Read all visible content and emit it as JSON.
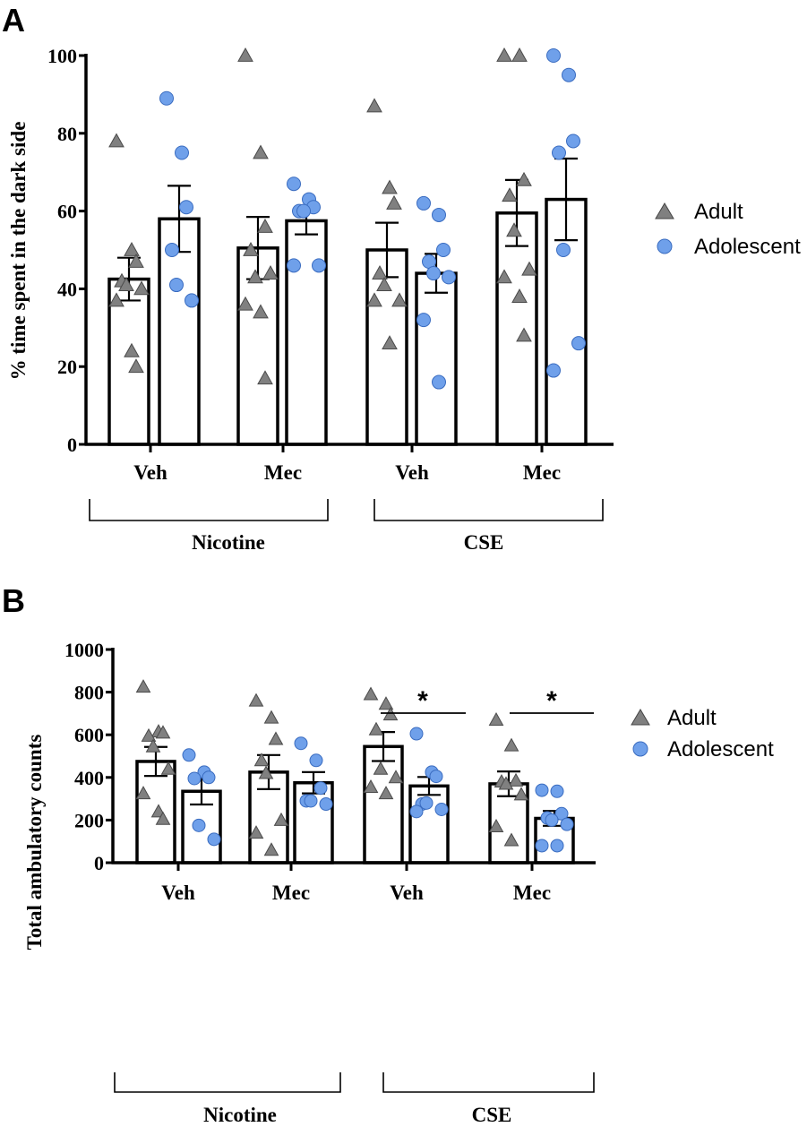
{
  "chart_data": [
    {
      "panel": "A",
      "type": "bar",
      "ylabel": "% time spent in the dark side",
      "ylim": [
        0,
        100
      ],
      "yticks": [
        "0",
        "20",
        "40",
        "60",
        "80",
        "100"
      ],
      "categories": [
        "Veh",
        "Mec",
        "Veh",
        "Mec"
      ],
      "groups": [
        "Nicotine",
        "CSE"
      ],
      "legend": [
        "Adult",
        "Adolescent"
      ],
      "series": [
        {
          "name": "Adult",
          "marker": "triangle",
          "color": "#808080",
          "values": [
            42.5,
            50.5,
            50,
            59.5
          ],
          "sem": [
            5.5,
            8,
            7,
            8.5
          ],
          "points": [
            [
              78,
              50,
              47,
              42,
              41,
              40,
              37,
              24,
              20
            ],
            [
              100,
              75,
              56,
              50,
              43,
              44,
              36,
              34,
              17
            ],
            [
              87,
              66,
              62,
              44,
              41,
              37,
              37,
              26
            ],
            [
              100,
              100,
              68,
              64,
              55,
              45,
              43,
              38,
              28
            ]
          ]
        },
        {
          "name": "Adolescent",
          "marker": "circle",
          "color": "#6fa0ea",
          "values": [
            58,
            57.5,
            44,
            63
          ],
          "sem": [
            8.5,
            3.5,
            5,
            10.5
          ],
          "points": [
            [
              89,
              75,
              61,
              50,
              41,
              37
            ],
            [
              67,
              63,
              61,
              60,
              60,
              46,
              46
            ],
            [
              62,
              59,
              50,
              47,
              44,
              43,
              32,
              16
            ],
            [
              100,
              95,
              78,
              75,
              50,
              26,
              19
            ]
          ]
        }
      ]
    },
    {
      "panel": "B",
      "type": "bar",
      "ylabel": "Total ambulatory counts",
      "ylim": [
        0,
        1000
      ],
      "yticks": [
        "0",
        "200",
        "400",
        "600",
        "800",
        "1000"
      ],
      "categories": [
        "Veh",
        "Mec",
        "Veh",
        "Mec"
      ],
      "groups": [
        "Nicotine",
        "CSE"
      ],
      "legend": [
        "Adult",
        "Adolescent"
      ],
      "significance": [
        "*",
        "*"
      ],
      "series": [
        {
          "name": "Adult",
          "marker": "triangle",
          "color": "#808080",
          "values": [
            475,
            425,
            545,
            370
          ],
          "sem": [
            68,
            80,
            68,
            58
          ],
          "points": [
            [
              825,
              615,
              610,
              595,
              545,
              440,
              325,
              240,
              205
            ],
            [
              760,
              680,
              580,
              480,
              420,
              200,
              140,
              60
            ],
            [
              790,
              745,
              695,
              625,
              440,
              400,
              355,
              325
            ],
            [
              670,
              550,
              385,
              380,
              370,
              320,
              170,
              105
            ]
          ]
        },
        {
          "name": "Adolescent",
          "marker": "circle",
          "color": "#6fa0ea",
          "values": [
            335,
            375,
            360,
            208
          ],
          "sem": [
            62,
            50,
            42,
            35
          ],
          "points": [
            [
              505,
              425,
              400,
              395,
              175,
              110
            ],
            [
              560,
              480,
              350,
              290,
              290,
              275
            ],
            [
              605,
              425,
              405,
              275,
              280,
              250,
              240
            ],
            [
              340,
              335,
              230,
              210,
              200,
              180,
              80,
              80
            ]
          ]
        }
      ]
    }
  ]
}
